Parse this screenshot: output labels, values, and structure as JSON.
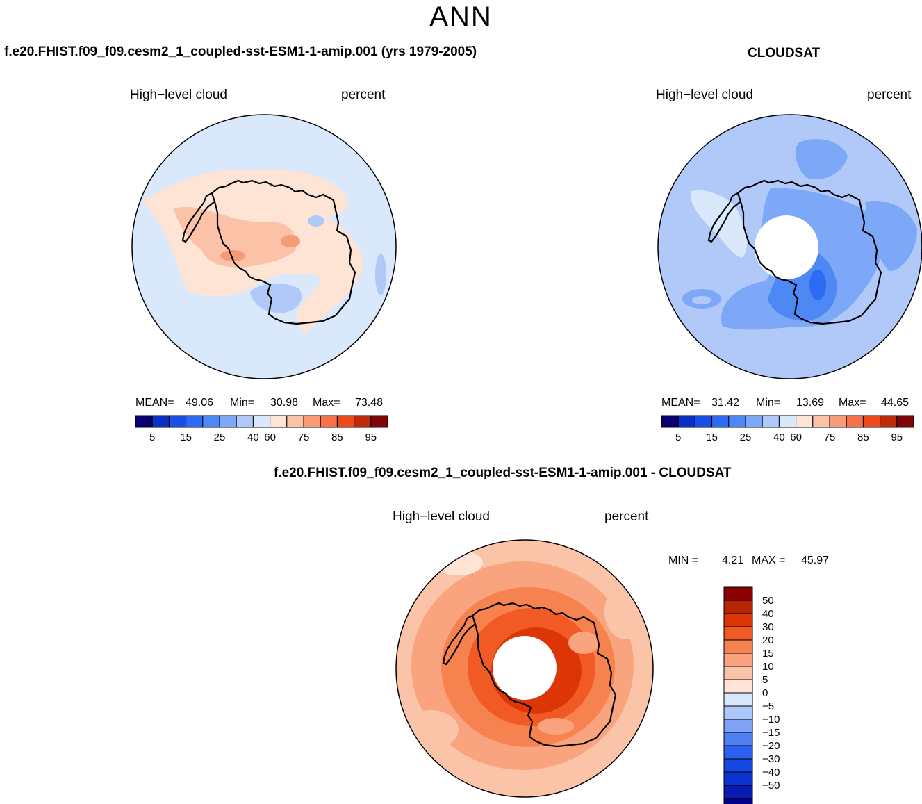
{
  "page_title": "ANN",
  "colors": {
    "seq": [
      "#08006e",
      "#0b2fc4",
      "#1b4ee6",
      "#2c6bf2",
      "#4d88f5",
      "#7da8f7",
      "#b0c9f9",
      "#d9e8fb",
      "#fde4d4",
      "#fbc2a8",
      "#f79a76",
      "#f4714a",
      "#ea4a1d",
      "#c02a0c",
      "#7e0606"
    ],
    "diff": [
      "#03008a",
      "#0a1bb0",
      "#0a34cf",
      "#1448e3",
      "#2a5ff0",
      "#4f80f3",
      "#7ea3f6",
      "#acc6f9",
      "#d8e7fb",
      "#fde4d4",
      "#fbc4a8",
      "#f9a47e",
      "#f6824f",
      "#f15a25",
      "#dc3607",
      "#b82504",
      "#8b0000"
    ]
  },
  "panels": {
    "model": {
      "title": "f.e20.FHIST.f09_f09.cesm2_1_coupled-sst-ESM1-1-amip.001 (yrs 1979-2005)",
      "variable": "High−level cloud",
      "units": "percent",
      "mean_label": "MEAN=",
      "mean": "49.06",
      "min_label": "Min=",
      "min": "30.98",
      "max_label": "Max=",
      "max": "73.48"
    },
    "obs": {
      "title": "CLOUDSAT",
      "variable": "High−level cloud",
      "units": "percent",
      "mean_label": "MEAN=",
      "mean": "31.42",
      "min_label": "Min=",
      "min": "13.69",
      "max_label": "Max=",
      "max": "44.65"
    },
    "diff": {
      "title": "f.e20.FHIST.f09_f09.cesm2_1_coupled-sst-ESM1-1-amip.001 - CLOUDSAT",
      "variable": "High−level cloud",
      "units": "percent",
      "min_label": "MIN =",
      "min": "4.21",
      "max_label": "MAX =",
      "max": "45.97"
    }
  },
  "chart_data": [
    {
      "type": "heatmap",
      "title": "f.e20.FHIST.f09_f09.cesm2_1_coupled-sst-ESM1-1-amip.001 (yrs 1979-2005)",
      "projection": "south polar stereographic",
      "variable": "High-level cloud",
      "units": "percent",
      "mean": 49.06,
      "min": 30.98,
      "max": 73.48,
      "colorbar_ticks": [
        "5",
        "15",
        "25",
        "40",
        "60",
        "75",
        "85",
        "95"
      ],
      "colorbar_bins": 15
    },
    {
      "type": "heatmap",
      "title": "CLOUDSAT",
      "projection": "south polar stereographic",
      "variable": "High-level cloud",
      "units": "percent",
      "mean": 31.42,
      "min": 13.69,
      "max": 44.65,
      "colorbar_ticks": [
        "5",
        "15",
        "25",
        "40",
        "60",
        "75",
        "85",
        "95"
      ],
      "colorbar_bins": 15
    },
    {
      "type": "heatmap",
      "title": "f.e20.FHIST.f09_f09.cesm2_1_coupled-sst-ESM1-1-amip.001 - CLOUDSAT",
      "projection": "south polar stereographic",
      "variable": "High-level cloud",
      "units": "percent",
      "min": 4.21,
      "max": 45.97,
      "colorbar_ticks": [
        "50",
        "40",
        "30",
        "20",
        "15",
        "10",
        "5",
        "0",
        "−5",
        "−10",
        "−15",
        "−20",
        "−30",
        "−40",
        "−50"
      ],
      "colorbar_bins": 17
    }
  ]
}
